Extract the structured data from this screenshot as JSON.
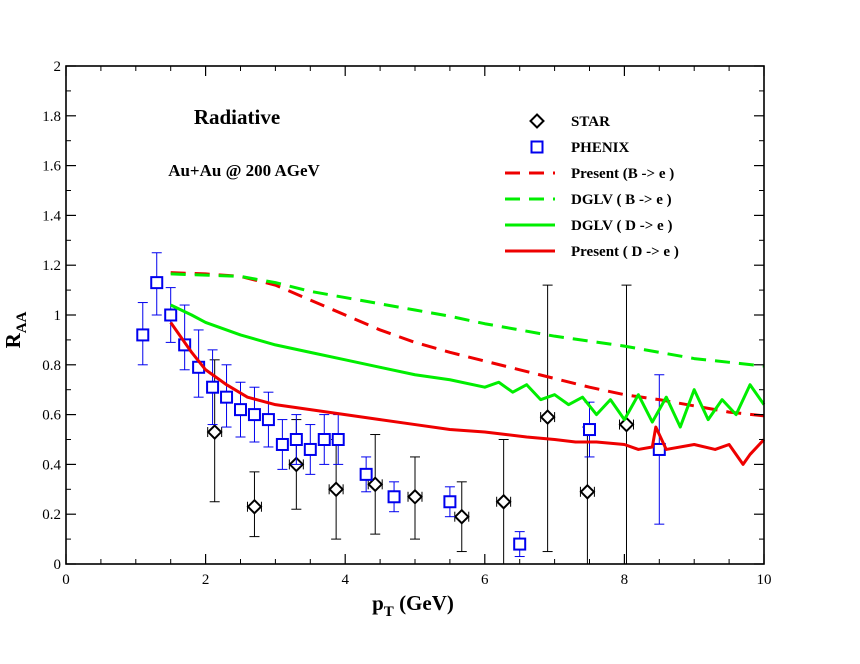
{
  "chart_data": {
    "type": "scatter",
    "title": "Radiative",
    "subtitle": "Au+Au @ 200 AGeV",
    "xlabel": {
      "main": "p",
      "sub": "T",
      "suffix": " (GeV)"
    },
    "ylabel": {
      "main": "R",
      "sub": "AA"
    },
    "xlim": [
      0,
      10
    ],
    "ylim": [
      0,
      2
    ],
    "xticks": [
      0,
      2,
      4,
      6,
      8,
      10
    ],
    "xtick_labels": [
      "0",
      "2",
      "4",
      "6",
      "8",
      "10"
    ],
    "yticks": [
      0,
      0.2,
      0.4,
      0.6,
      0.8,
      1,
      1.2,
      1.4,
      1.6,
      1.8,
      2
    ],
    "ytick_labels": [
      "0",
      "0.2",
      "0.4",
      "0.6",
      "0.8",
      "1",
      "1.2",
      "1.4",
      "1.6",
      "1.8",
      "2"
    ],
    "grid": false,
    "legend_position": "top-right",
    "series": [
      {
        "name": "STAR",
        "kind": "points",
        "marker": "diamond",
        "color": "#000000",
        "points": [
          {
            "x": 2.13,
            "y": 0.53,
            "lo": 0.25,
            "hi": 0.82,
            "xerr": 0.1
          },
          {
            "x": 2.7,
            "y": 0.23,
            "lo": 0.11,
            "hi": 0.37,
            "xerr": 0.1
          },
          {
            "x": 3.3,
            "y": 0.4,
            "lo": 0.22,
            "hi": 0.58,
            "xerr": 0.1
          },
          {
            "x": 3.87,
            "y": 0.3,
            "lo": 0.1,
            "hi": 0.5,
            "xerr": 0.1
          },
          {
            "x": 4.43,
            "y": 0.32,
            "lo": 0.12,
            "hi": 0.52,
            "xerr": 0.1
          },
          {
            "x": 5.0,
            "y": 0.27,
            "lo": 0.1,
            "hi": 0.43,
            "xerr": 0.1
          },
          {
            "x": 5.67,
            "y": 0.19,
            "lo": 0.05,
            "hi": 0.33,
            "xerr": 0.1
          },
          {
            "x": 6.27,
            "y": 0.25,
            "lo": 0.0,
            "hi": 0.5,
            "xerr": 0.1
          },
          {
            "x": 6.9,
            "y": 0.59,
            "lo": 0.05,
            "hi": 1.12,
            "xerr": 0.1
          },
          {
            "x": 7.47,
            "y": 0.29,
            "lo": 0.0,
            "hi": 0.55,
            "xerr": 0.1
          },
          {
            "x": 8.03,
            "y": 0.56,
            "lo": 0.0,
            "hi": 1.12,
            "xerr": 0.1
          }
        ]
      },
      {
        "name": "PHENIX",
        "kind": "points",
        "marker": "square",
        "color": "#0000ee",
        "points": [
          {
            "x": 1.1,
            "y": 0.92,
            "lo": 0.8,
            "hi": 1.05
          },
          {
            "x": 1.3,
            "y": 1.13,
            "lo": 1.0,
            "hi": 1.25
          },
          {
            "x": 1.5,
            "y": 1.0,
            "lo": 0.89,
            "hi": 1.11
          },
          {
            "x": 1.7,
            "y": 0.88,
            "lo": 0.78,
            "hi": 1.04
          },
          {
            "x": 1.9,
            "y": 0.79,
            "lo": 0.67,
            "hi": 0.94
          },
          {
            "x": 2.1,
            "y": 0.71,
            "lo": 0.56,
            "hi": 0.86
          },
          {
            "x": 2.3,
            "y": 0.67,
            "lo": 0.55,
            "hi": 0.8
          },
          {
            "x": 2.5,
            "y": 0.62,
            "lo": 0.51,
            "hi": 0.73
          },
          {
            "x": 2.7,
            "y": 0.6,
            "lo": 0.49,
            "hi": 0.71
          },
          {
            "x": 2.9,
            "y": 0.58,
            "lo": 0.47,
            "hi": 0.69
          },
          {
            "x": 3.1,
            "y": 0.48,
            "lo": 0.38,
            "hi": 0.58
          },
          {
            "x": 3.3,
            "y": 0.5,
            "lo": 0.4,
            "hi": 0.6
          },
          {
            "x": 3.5,
            "y": 0.46,
            "lo": 0.36,
            "hi": 0.56
          },
          {
            "x": 3.7,
            "y": 0.5,
            "lo": 0.4,
            "hi": 0.6
          },
          {
            "x": 3.9,
            "y": 0.5,
            "lo": 0.4,
            "hi": 0.6
          },
          {
            "x": 4.3,
            "y": 0.36,
            "lo": 0.29,
            "hi": 0.43
          },
          {
            "x": 4.7,
            "y": 0.27,
            "lo": 0.21,
            "hi": 0.33
          },
          {
            "x": 5.5,
            "y": 0.25,
            "lo": 0.19,
            "hi": 0.31
          },
          {
            "x": 6.5,
            "y": 0.08,
            "lo": 0.03,
            "hi": 0.13
          },
          {
            "x": 7.5,
            "y": 0.54,
            "lo": 0.43,
            "hi": 0.65
          },
          {
            "x": 8.5,
            "y": 0.46,
            "lo": 0.16,
            "hi": 0.76
          }
        ]
      },
      {
        "name": "Present (B -> e )",
        "kind": "line",
        "dash": true,
        "color": "#ee0000",
        "x": [
          1.5,
          2.0,
          2.5,
          3.0,
          3.5,
          4.0,
          4.5,
          5.0,
          5.5,
          6.0,
          6.5,
          7.0,
          7.5,
          8.0,
          8.5,
          9.0,
          9.5,
          10.0
        ],
        "y": [
          1.17,
          1.165,
          1.155,
          1.12,
          1.06,
          1.0,
          0.94,
          0.89,
          0.85,
          0.815,
          0.78,
          0.745,
          0.71,
          0.68,
          0.66,
          0.635,
          0.61,
          0.595
        ]
      },
      {
        "name": "DGLV ( B -> e )",
        "kind": "line",
        "dash": true,
        "color": "#00ee00",
        "x": [
          1.5,
          2.0,
          2.5,
          3.0,
          3.5,
          4.0,
          4.5,
          5.0,
          5.5,
          6.0,
          6.5,
          7.0,
          7.5,
          8.0,
          8.5,
          9.0,
          9.5,
          10.0
        ],
        "y": [
          1.165,
          1.16,
          1.155,
          1.13,
          1.095,
          1.07,
          1.045,
          1.02,
          0.995,
          0.965,
          0.94,
          0.915,
          0.895,
          0.875,
          0.85,
          0.825,
          0.81,
          0.795
        ]
      },
      {
        "name": "DGLV ( D -> e )",
        "kind": "line",
        "dash": false,
        "color": "#00ee00",
        "x": [
          1.5,
          1.8,
          2.0,
          2.5,
          3.0,
          3.5,
          4.0,
          4.5,
          5.0,
          5.5,
          6.0,
          6.2,
          6.4,
          6.6,
          6.8,
          7.0,
          7.2,
          7.4,
          7.6,
          7.8,
          8.0,
          8.2,
          8.4,
          8.6,
          8.8,
          9.0,
          9.2,
          9.4,
          9.6,
          9.8,
          10.0
        ],
        "y": [
          1.04,
          1.0,
          0.97,
          0.92,
          0.88,
          0.85,
          0.82,
          0.79,
          0.76,
          0.74,
          0.71,
          0.73,
          0.69,
          0.72,
          0.66,
          0.68,
          0.64,
          0.67,
          0.6,
          0.66,
          0.58,
          0.68,
          0.57,
          0.67,
          0.55,
          0.7,
          0.58,
          0.66,
          0.6,
          0.72,
          0.64
        ]
      },
      {
        "name": "Present ( D -> e )",
        "kind": "line",
        "dash": false,
        "color": "#ee0000",
        "x": [
          1.5,
          1.8,
          2.0,
          2.3,
          2.6,
          3.0,
          3.5,
          4.0,
          4.5,
          5.0,
          5.5,
          6.0,
          6.3,
          6.6,
          7.0,
          7.3,
          7.6,
          8.0,
          8.2,
          8.4,
          8.45,
          8.6,
          9.0,
          9.3,
          9.5,
          9.7,
          9.8,
          10.0
        ],
        "y": [
          0.97,
          0.85,
          0.78,
          0.72,
          0.67,
          0.64,
          0.62,
          0.6,
          0.58,
          0.56,
          0.54,
          0.53,
          0.52,
          0.51,
          0.5,
          0.49,
          0.49,
          0.48,
          0.46,
          0.47,
          0.55,
          0.46,
          0.48,
          0.46,
          0.48,
          0.4,
          0.44,
          0.5
        ]
      }
    ]
  }
}
